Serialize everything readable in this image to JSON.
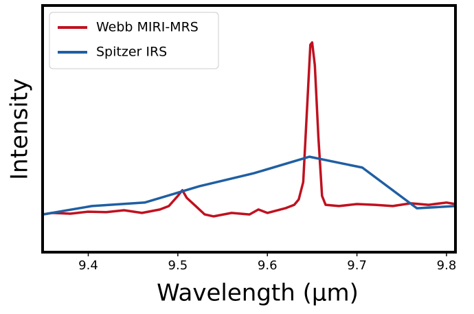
{
  "chart_data": {
    "type": "line",
    "xlabel": "Wavelength (μm)",
    "ylabel": "Intensity",
    "xlim": [
      9.349,
      9.81
    ],
    "xticks": [
      9.4,
      9.5,
      9.6,
      9.7,
      9.8
    ],
    "ylim": [
      0,
      1
    ],
    "yticks": [],
    "legend": "upper left",
    "series": [
      {
        "name": "Webb MIRI-MRS",
        "color": "#c0111f",
        "x": [
          9.349,
          9.36,
          9.38,
          9.4,
          9.42,
          9.44,
          9.46,
          9.48,
          9.49,
          9.5,
          9.505,
          9.51,
          9.52,
          9.53,
          9.54,
          9.56,
          9.58,
          9.59,
          9.6,
          9.62,
          9.63,
          9.635,
          9.64,
          9.645,
          9.648,
          9.65,
          9.653,
          9.657,
          9.661,
          9.665,
          9.68,
          9.7,
          9.72,
          9.74,
          9.76,
          9.78,
          9.8,
          9.81
        ],
        "values": [
          0.153,
          0.159,
          0.156,
          0.164,
          0.162,
          0.17,
          0.159,
          0.173,
          0.187,
          0.228,
          0.251,
          0.22,
          0.187,
          0.153,
          0.145,
          0.159,
          0.153,
          0.173,
          0.159,
          0.178,
          0.192,
          0.214,
          0.284,
          0.632,
          0.841,
          0.85,
          0.758,
          0.465,
          0.228,
          0.192,
          0.187,
          0.195,
          0.192,
          0.187,
          0.198,
          0.192,
          0.201,
          0.195
        ]
      },
      {
        "name": "Spitzer IRS",
        "color": "#1f5fa3",
        "x": [
          9.349,
          9.404,
          9.463,
          9.524,
          9.585,
          9.647,
          9.706,
          9.767,
          9.81
        ],
        "values": [
          0.153,
          0.187,
          0.201,
          0.267,
          0.32,
          0.387,
          0.343,
          0.178,
          0.187
        ]
      }
    ]
  }
}
